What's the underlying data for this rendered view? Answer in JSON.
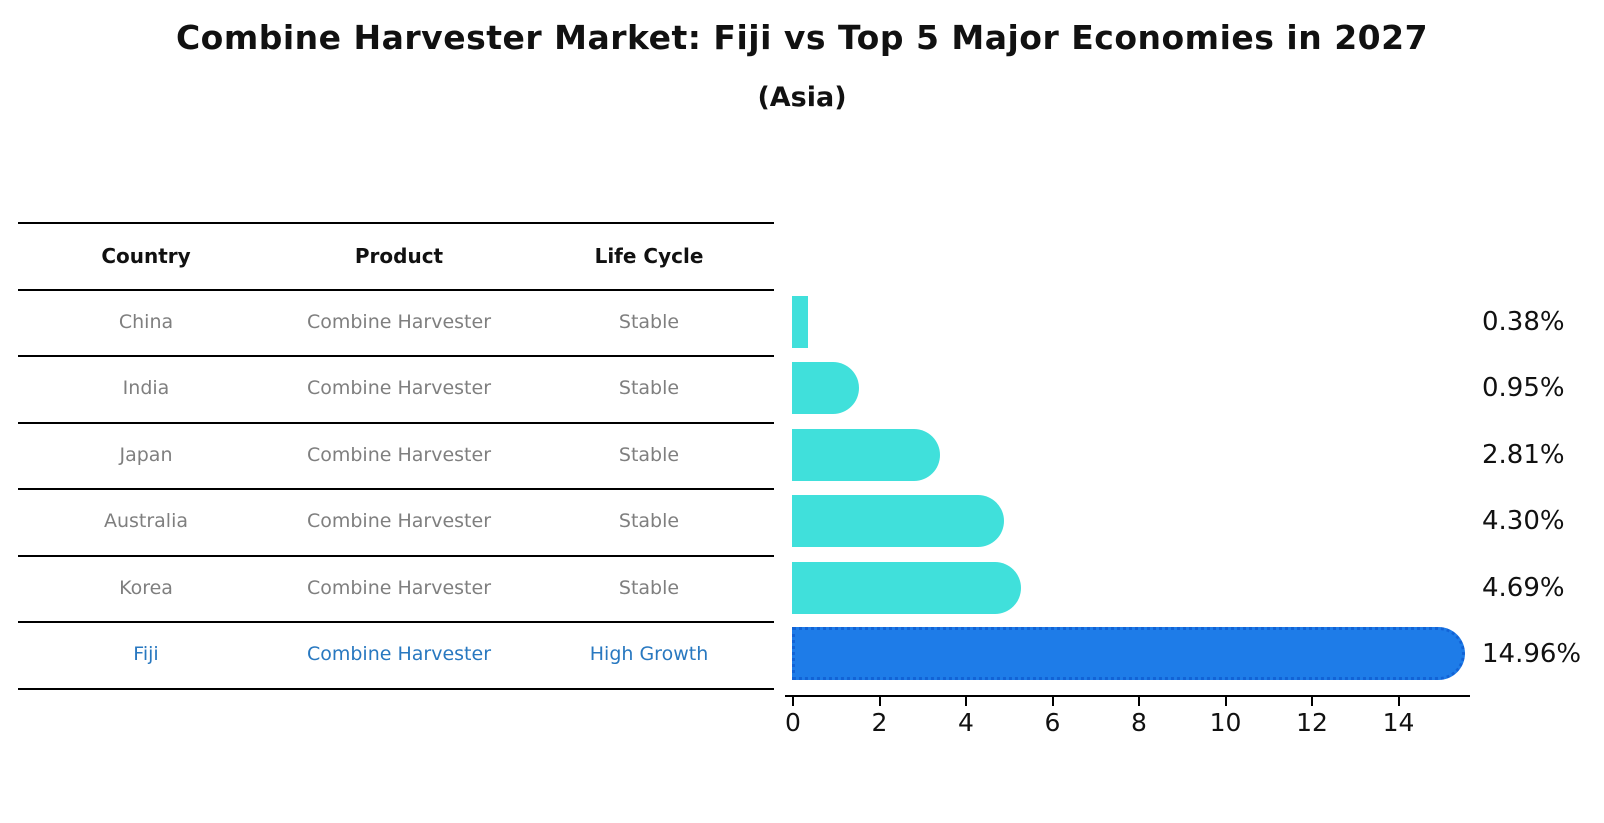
{
  "title": "Combine Harvester Market: Fiji vs Top 5 Major Economies in 2027",
  "subtitle": "(Asia)",
  "table": {
    "headers": [
      "Country",
      "Product",
      "Life Cycle"
    ],
    "rows": [
      {
        "country": "China",
        "product": "Combine Harvester",
        "life_cycle": "Stable"
      },
      {
        "country": "India",
        "product": "Combine Harvester",
        "life_cycle": "Stable"
      },
      {
        "country": "Japan",
        "product": "Combine Harvester",
        "life_cycle": "Stable"
      },
      {
        "country": "Australia",
        "product": "Combine Harvester",
        "life_cycle": "Stable"
      },
      {
        "country": "Korea",
        "product": "Combine Harvester",
        "life_cycle": "Stable"
      },
      {
        "country": "Fiji",
        "product": "Combine Harvester",
        "life_cycle": "High Growth"
      }
    ]
  },
  "chart_data": {
    "type": "bar",
    "orientation": "horizontal",
    "title": "Combine Harvester Market: Fiji vs Top 5 Major Economies in 2027",
    "subtitle": "(Asia)",
    "categories": [
      "China",
      "India",
      "Japan",
      "Australia",
      "Korea",
      "Fiji"
    ],
    "values": [
      0.38,
      0.95,
      2.81,
      4.3,
      4.69,
      14.96
    ],
    "value_labels": [
      "0.38%",
      "0.95%",
      "2.81%",
      "4.30%",
      "4.69%",
      "14.96%"
    ],
    "x_ticks": [
      0,
      2,
      4,
      6,
      8,
      10,
      12,
      14
    ],
    "x_tick_labels": [
      "0",
      "2",
      "4",
      "6",
      "8",
      "10",
      "12",
      "14"
    ],
    "xlim": [
      0,
      15.5
    ],
    "xlabel": "",
    "ylabel": "",
    "grid": false,
    "legend": false,
    "highlight_index": 5,
    "highlight_category": "Fiji"
  },
  "colors": {
    "stable_bar": "#40E0DB",
    "highlight_bar": "#1E7CE8",
    "highlight_bar_border": "#1263D6",
    "highlight_text": "#2878C0",
    "table_text": "#7F7F7F",
    "line": "#000000"
  }
}
